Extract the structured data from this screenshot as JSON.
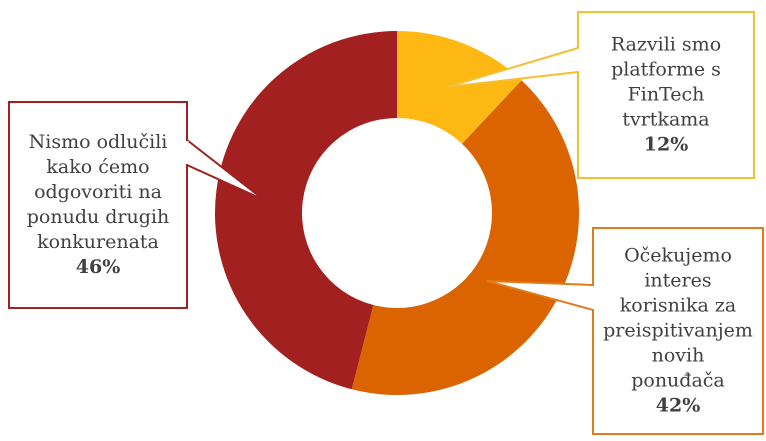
{
  "chart_data": {
    "type": "pie",
    "donut": true,
    "slices": [
      {
        "label_lines": [
          "Razvili smo",
          "platforme s",
          "FinTech",
          "tvrtkama"
        ],
        "value": 12,
        "value_label": "12%",
        "color": "#FDB813",
        "border_color": "#F3C033"
      },
      {
        "label_lines": [
          "Očekujemo",
          "interes",
          "korisnika za",
          "preispitivanjem",
          "novih",
          "ponuđača"
        ],
        "value": 42,
        "value_label": "42%",
        "color": "#DB6400",
        "border_color": "#E07C1A"
      },
      {
        "label_lines": [
          "Nismo odlučili",
          "kako ćemo",
          "odgovoriti na",
          "ponudu drugih",
          "konkurenata"
        ],
        "value": 46,
        "value_label": "46%",
        "color": "#A32020",
        "border_color": "#A32020"
      }
    ]
  }
}
